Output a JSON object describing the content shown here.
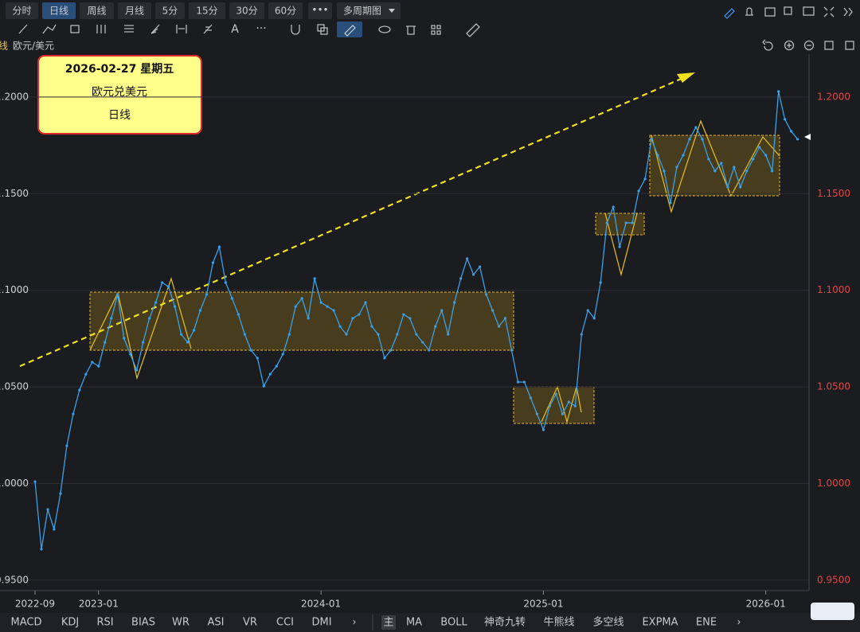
{
  "toolbar": {
    "periods": [
      "分时",
      "日线",
      "周线",
      "月线",
      "5分",
      "15分",
      "30分",
      "60分"
    ],
    "more": "•••",
    "multi": "多周期图"
  },
  "drawing_tools": {
    "text_tool": "A",
    "more": "···"
  },
  "symbol": {
    "period_cut": "线",
    "name": "欧元/美元"
  },
  "info_box": {
    "date": "2026-02-27 星期五",
    "instrument": "欧元兑美元",
    "period": "日线"
  },
  "indicator_tabs": {
    "left": [
      "MACD",
      "KDJ",
      "RSI",
      "BIAS",
      "WR",
      "ASI",
      "VR",
      "CCI",
      "DMI",
      "›"
    ],
    "main": "主",
    "right": [
      "MA",
      "BOLL",
      "神奇九转",
      "牛熊线",
      "多空线",
      "EXPMA",
      "ENE",
      "›"
    ]
  },
  "chart_data": {
    "type": "line",
    "color": "#3ba0e6",
    "categories": [
      "2022-09",
      null,
      null,
      null,
      null,
      null,
      null,
      null,
      null,
      null,
      "2023-01",
      null,
      null,
      null,
      null,
      null,
      null,
      null,
      null,
      null,
      null,
      null,
      null,
      null,
      null,
      null,
      null,
      null,
      null,
      null,
      null,
      null,
      null,
      null,
      null,
      null,
      null,
      null,
      null,
      null,
      null,
      null,
      null,
      null,
      null,
      "2024-01",
      null,
      null,
      null,
      null,
      null,
      null,
      null,
      null,
      null,
      null,
      null,
      null,
      null,
      null,
      null,
      null,
      null,
      null,
      null,
      null,
      null,
      null,
      null,
      null,
      null,
      null,
      null,
      null,
      null,
      null,
      null,
      null,
      null,
      null,
      "2025-01",
      null,
      null,
      null,
      null,
      null,
      null,
      null,
      null,
      null,
      null,
      null,
      null,
      null,
      null,
      null,
      null,
      null,
      null,
      null,
      null,
      null,
      null,
      null,
      null,
      null,
      null,
      null,
      null,
      null,
      null,
      null,
      null,
      null,
      null,
      "2026-01",
      null,
      null,
      null,
      null,
      null
    ],
    "values": [
      1.001,
      0.966,
      0.9866,
      0.9763,
      0.9948,
      1.0195,
      1.036,
      1.0484,
      1.0566,
      1.0628,
      1.0607,
      1.0731,
      1.0855,
      1.0978,
      1.0752,
      1.0669,
      1.0587,
      1.0731,
      1.0855,
      1.0937,
      1.104,
      1.1019,
      1.0916,
      1.0772,
      1.0731,
      1.0793,
      1.0896,
      1.0978,
      1.1143,
      1.1225,
      1.104,
      1.0958,
      1.0875,
      1.0772,
      1.069,
      1.0649,
      1.0504,
      1.0566,
      1.0607,
      1.0669,
      1.0772,
      1.0916,
      1.0958,
      1.0855,
      1.1061,
      1.0937,
      1.0916,
      1.0896,
      1.0813,
      1.0772,
      1.0855,
      1.0875,
      1.0937,
      1.0813,
      1.0772,
      1.0649,
      1.069,
      1.0772,
      1.0875,
      1.0855,
      1.0772,
      1.0731,
      1.069,
      1.0813,
      1.0896,
      1.0772,
      1.0937,
      1.1061,
      1.1164,
      1.1081,
      1.1122,
      1.0978,
      1.0896,
      1.0813,
      1.0855,
      1.069,
      1.0525,
      1.0525,
      1.0443,
      1.036,
      1.0278,
      1.0401,
      1.0463,
      1.036,
      1.0422,
      1.0401,
      1.0772,
      1.0896,
      1.0855,
      1.104,
      1.1349,
      1.1431,
      1.1225,
      1.1349,
      1.1349,
      1.1514,
      1.1576,
      1.1782,
      1.1699,
      1.1617,
      1.1452,
      1.1637,
      1.1699,
      1.1782,
      1.1843,
      1.1782,
      1.1679,
      1.1617,
      1.1658,
      1.1534,
      1.1637,
      1.1534,
      1.1617,
      1.1679,
      1.174,
      1.1699,
      1.1617,
      1.2029,
      1.1885,
      1.1823,
      1.1782
    ],
    "ylim": [
      0.9446,
      1.2222
    ],
    "yticks": [
      {
        "value": 0.95,
        "label": "0.9500"
      },
      {
        "value": 1.0,
        "label": "1.0000"
      },
      {
        "value": 1.05,
        "label": "1.0500"
      },
      {
        "value": 1.1,
        "label": "1.1000"
      },
      {
        "value": 1.15,
        "label": "1.1500"
      },
      {
        "value": 1.2,
        "label": "1.2000"
      }
    ],
    "grid": true
  }
}
